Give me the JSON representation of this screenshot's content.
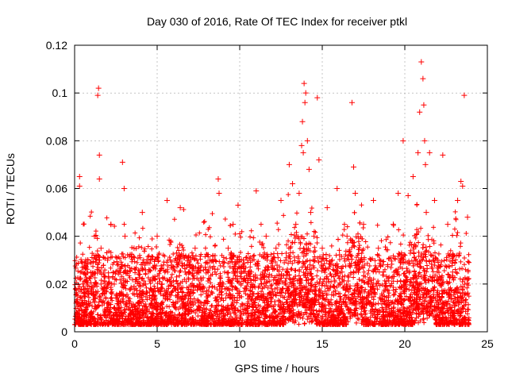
{
  "chart_data": {
    "type": "scatter",
    "title": "Day 030 of 2016, Rate Of TEC Index for receiver ptkl",
    "xlabel": "GPS time / hours",
    "ylabel": "ROTI / TECUs",
    "xlim": [
      0,
      25
    ],
    "ylim": [
      0,
      0.12
    ],
    "xticks": [
      0,
      5,
      10,
      15,
      20,
      25
    ],
    "yticks": [
      0,
      0.02,
      0.04,
      0.06,
      0.08,
      0.1,
      0.12
    ],
    "xtick_labels": [
      "0",
      "5",
      "10",
      "15",
      "20",
      "25"
    ],
    "ytick_labels": [
      "0",
      "0.02",
      "0.04",
      "0.06",
      "0.08",
      "0.1",
      "0.12"
    ],
    "grid": true,
    "marker": "plus",
    "color": "#ff0000",
    "series": [
      {
        "name": "ROTI",
        "x": [
          0.1,
          0.3,
          0.3,
          0.5,
          0.6,
          0.8,
          1.0,
          1.2,
          1.4,
          1.45,
          1.5,
          1.5,
          1.6,
          1.6,
          1.8,
          2.0,
          2.2,
          2.4,
          2.6,
          2.9,
          3.0,
          3.05,
          3.2,
          3.4,
          3.6,
          3.9,
          4.1,
          4.3,
          4.6,
          4.8,
          5.0,
          5.3,
          5.6,
          5.8,
          6.1,
          6.4,
          6.7,
          7.0,
          7.3,
          7.6,
          7.9,
          8.2,
          8.5,
          8.7,
          8.75,
          9.0,
          9.3,
          9.6,
          9.9,
          10.1,
          10.4,
          10.7,
          11.0,
          11.3,
          11.6,
          11.9,
          12.2,
          12.5,
          12.8,
          13.0,
          13.2,
          13.4,
          13.6,
          13.75,
          13.8,
          13.85,
          13.9,
          13.95,
          14.0,
          14.1,
          14.2,
          14.3,
          14.5,
          14.7,
          14.8,
          15.0,
          15.3,
          15.6,
          15.9,
          16.2,
          16.5,
          16.8,
          16.9,
          17.0,
          17.2,
          17.5,
          17.8,
          18.1,
          18.4,
          18.7,
          19.0,
          19.3,
          19.6,
          19.9,
          20.2,
          20.5,
          20.8,
          20.9,
          21.0,
          21.1,
          21.15,
          21.2,
          21.25,
          21.3,
          21.5,
          21.8,
          22.0,
          22.3,
          22.6,
          22.9,
          23.2,
          23.4,
          23.5,
          23.6,
          23.8
        ],
        "y": [
          0.012,
          0.065,
          0.061,
          0.025,
          0.015,
          0.03,
          0.018,
          0.04,
          0.099,
          0.102,
          0.064,
          0.074,
          0.035,
          0.02,
          0.012,
          0.03,
          0.045,
          0.02,
          0.015,
          0.071,
          0.06,
          0.04,
          0.025,
          0.018,
          0.035,
          0.012,
          0.05,
          0.02,
          0.03,
          0.015,
          0.04,
          0.02,
          0.055,
          0.03,
          0.018,
          0.052,
          0.025,
          0.015,
          0.035,
          0.02,
          0.012,
          0.03,
          0.025,
          0.064,
          0.058,
          0.02,
          0.035,
          0.045,
          0.053,
          0.03,
          0.018,
          0.025,
          0.059,
          0.02,
          0.04,
          0.015,
          0.035,
          0.055,
          0.03,
          0.07,
          0.062,
          0.045,
          0.058,
          0.078,
          0.088,
          0.075,
          0.104,
          0.096,
          0.1,
          0.08,
          0.068,
          0.05,
          0.04,
          0.098,
          0.072,
          0.035,
          0.052,
          0.03,
          0.06,
          0.025,
          0.04,
          0.096,
          0.069,
          0.058,
          0.03,
          0.045,
          0.02,
          0.055,
          0.035,
          0.025,
          0.015,
          0.045,
          0.058,
          0.08,
          0.057,
          0.065,
          0.075,
          0.092,
          0.113,
          0.106,
          0.095,
          0.08,
          0.07,
          0.05,
          0.075,
          0.055,
          0.03,
          0.074,
          0.045,
          0.025,
          0.055,
          0.063,
          0.061,
          0.099,
          0.048
        ]
      }
    ]
  }
}
